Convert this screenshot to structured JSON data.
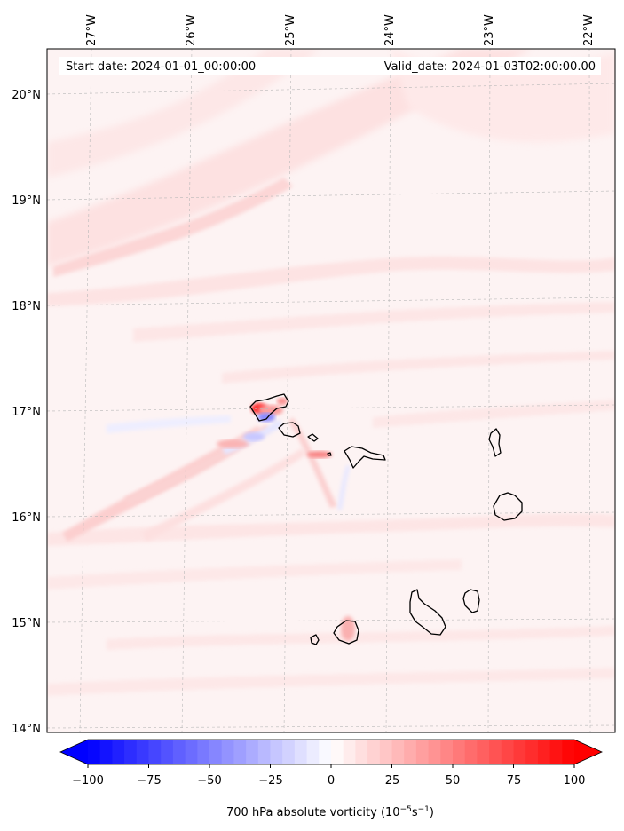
{
  "header": {
    "start_label": "Start date: 2024-01-01_00:00:00",
    "valid_label": "Valid_date: 2024-01-03T02:00:00.00"
  },
  "longitude_labels": [
    "27°W",
    "26°W",
    "25°W",
    "24°W",
    "23°W",
    "22°W"
  ],
  "latitude_labels": [
    "20°N",
    "19°N",
    "18°N",
    "17°N",
    "16°N",
    "15°N",
    "14°N"
  ],
  "colorbar": {
    "ticks": [
      "−100",
      "−75",
      "−50",
      "−25",
      "0",
      "25",
      "50",
      "75",
      "100"
    ],
    "label_prefix": "700 hPa absolute vorticity (10",
    "label_exp1": "−5",
    "label_mid": "s",
    "label_exp2": "−1",
    "label_suffix": ")",
    "min": -100,
    "max": 100,
    "colormap": "bwr",
    "extend": "both"
  },
  "colors": {
    "negative": "#0000ff",
    "zero": "#ffffff",
    "positive": "#ff0000",
    "background_field": "#fdf2f2"
  }
}
